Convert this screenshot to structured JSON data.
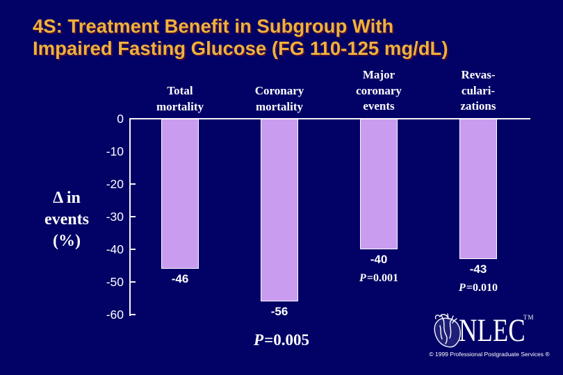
{
  "slide": {
    "title_line1": "4S: Treatment Benefit in Subgroup With",
    "title_line2": "Impaired Fasting Glucose (FG 110-125 mg/dL)"
  },
  "chart": {
    "y_axis_label_lines": [
      "Δ in",
      "events",
      "(%)"
    ],
    "header_lines": [
      [
        "Total",
        "mortality"
      ],
      [
        "Coronary",
        "mortality"
      ],
      [
        "Major",
        "coronary",
        "events"
      ],
      [
        "Revas-",
        "culari-",
        "zations"
      ]
    ]
  },
  "chart_data": {
    "type": "bar",
    "title": "4S: Treatment Benefit in Subgroup With Impaired Fasting Glucose (FG 110-125 mg/dL)",
    "categories": [
      "Total mortality",
      "Coronary mortality",
      "Major coronary events",
      "Revascularizations"
    ],
    "values": [
      -46,
      -56,
      -40,
      -43
    ],
    "bar_labels": [
      "-46",
      "-56",
      "-40",
      "-43"
    ],
    "p_labels": [
      "",
      "P=0.005",
      "P=0.001",
      "P=0.010"
    ],
    "ylabel": "Δ in events (%)",
    "yticks": [
      "0",
      "-10",
      "-20",
      "-30",
      "-40",
      "-50",
      "-60"
    ],
    "ylim": [
      -60,
      0
    ],
    "grid": false,
    "legend": false,
    "bar_color": "#C99CF0",
    "background_color": "#010166",
    "axis_color": "#FFFFFF"
  },
  "logo": {
    "text": "NLEC",
    "tm": "TM",
    "copyright": "© 1999 Professional Postgraduate Services ®"
  },
  "colors": {
    "title": "#EDB23C",
    "bar": "#C99CF0",
    "background": "#010166",
    "text": "#FFFFFF"
  }
}
